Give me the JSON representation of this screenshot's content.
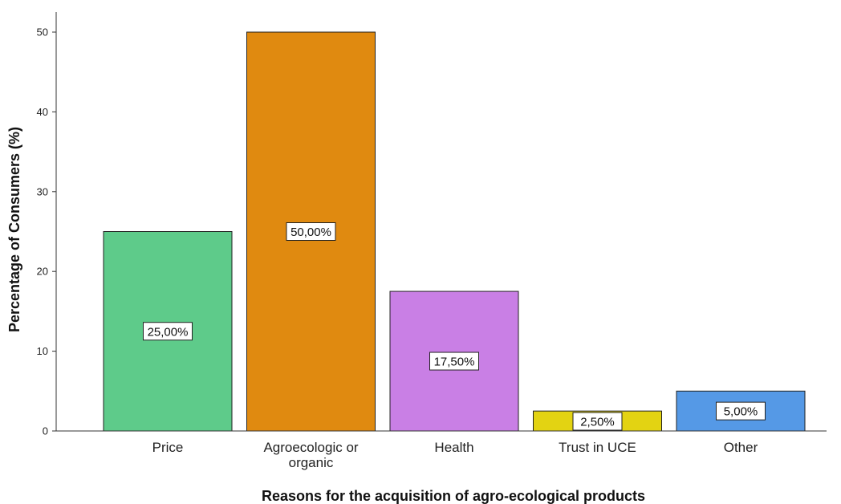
{
  "chart_data": {
    "type": "bar",
    "title": "",
    "xlabel": "Reasons for the acquisition of agro-ecological products",
    "ylabel": "Percentage of Consumers (%)",
    "ylim": [
      0,
      52
    ],
    "yticks": [
      0,
      10,
      20,
      30,
      40,
      50
    ],
    "grid": false,
    "legend": "none",
    "categories": [
      {
        "label": [
          "Price"
        ],
        "value": 25.0,
        "data_label": "25,00%",
        "color": "#5ecb8a"
      },
      {
        "label": [
          "Agroecologic or",
          "organic"
        ],
        "value": 50.0,
        "data_label": "50,00%",
        "color": "#e08a10"
      },
      {
        "label": [
          "Health"
        ],
        "value": 17.5,
        "data_label": "17,50%",
        "color": "#c97fe5"
      },
      {
        "label": [
          "Trust in UCE"
        ],
        "value": 2.5,
        "data_label": "2,50%",
        "color": "#e3d312"
      },
      {
        "label": [
          "Other"
        ],
        "value": 5.0,
        "data_label": "5,00%",
        "color": "#5599e6"
      }
    ]
  }
}
